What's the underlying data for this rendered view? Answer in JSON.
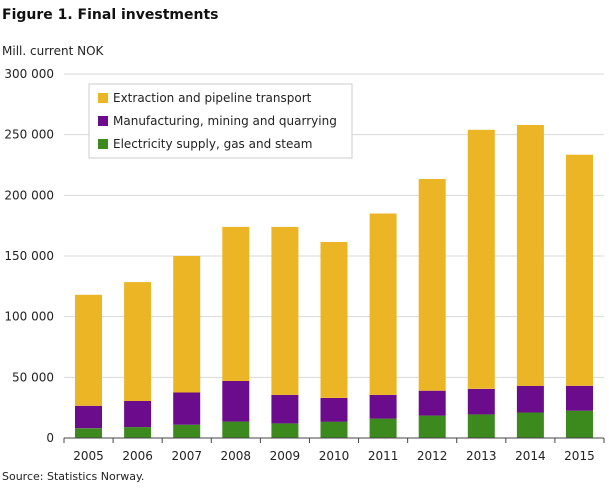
{
  "title": "Figure 1. Final investments",
  "unit_label": "Mill. current NOK",
  "source": "Source: Statistics Norway.",
  "colors": {
    "extraction": "#EBB525",
    "manufacturing": "#6B0C8C",
    "electricity": "#3C8A1E",
    "grid": "#d9d9d9",
    "axis": "#444444"
  },
  "chart_data": {
    "type": "bar",
    "stacked": true,
    "title": "Figure 1. Final investments",
    "ylabel": "Mill. current NOK",
    "xlabel": "",
    "ylim": [
      0,
      300000
    ],
    "yticks": [
      0,
      50000,
      100000,
      150000,
      200000,
      250000,
      300000
    ],
    "ytick_labels": [
      "0",
      "50 000",
      "100 000",
      "150 000",
      "200 000",
      "250 000",
      "300 000"
    ],
    "categories": [
      "2005",
      "2006",
      "2007",
      "2008",
      "2009",
      "2010",
      "2011",
      "2012",
      "2013",
      "2014",
      "2015"
    ],
    "legend_position": "top-left",
    "series": [
      {
        "key": "electricity",
        "name": "Electricity supply, gas and steam",
        "values": [
          8000,
          9000,
          11000,
          13500,
          12000,
          13500,
          16000,
          18500,
          19500,
          21000,
          22500
        ]
      },
      {
        "key": "manufacturing",
        "name": "Manufacturing, mining and quarrying",
        "values": [
          18500,
          21500,
          26500,
          33500,
          23500,
          19500,
          19500,
          20500,
          21000,
          22000,
          20500
        ]
      },
      {
        "key": "extraction",
        "name": "Extraction and pipeline transport",
        "values": [
          91500,
          98000,
          112500,
          127000,
          138500,
          128500,
          149500,
          174500,
          213500,
          215000,
          190500
        ]
      }
    ],
    "legend_order": [
      "extraction",
      "manufacturing",
      "electricity"
    ]
  }
}
